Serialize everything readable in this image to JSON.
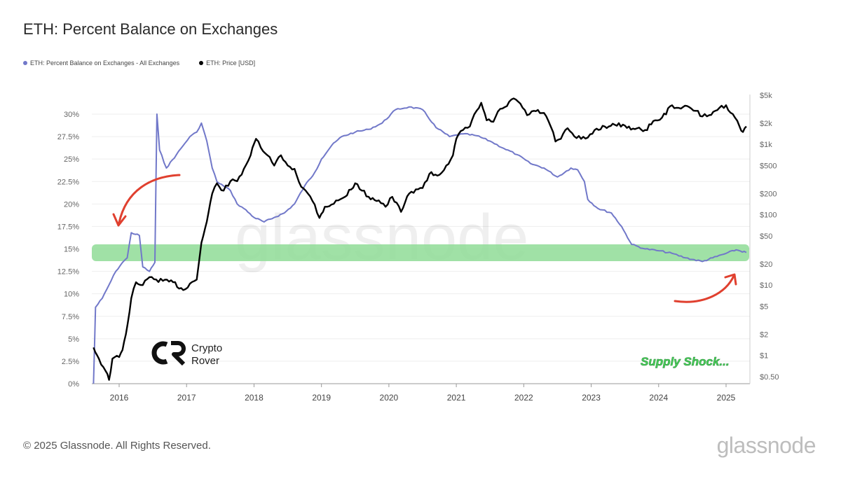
{
  "title": "ETH: Percent Balance on Exchanges",
  "legend": [
    {
      "label": "ETH: Percent Balance on Exchanges - All Exchanges",
      "color": "#7178c9"
    },
    {
      "label": "ETH: Price [USD]",
      "color": "#000000"
    }
  ],
  "watermark": "glassnode",
  "annotation": "Supply Shock...",
  "brand": {
    "line1": "Crypto",
    "line2": "Rover"
  },
  "footer": {
    "copyright": "© 2025 Glassnode. All Rights Reserved.",
    "logo": "glassnode"
  },
  "colors": {
    "balance": "#7178c9",
    "price": "#000000",
    "highlight": "#8fdc96",
    "arrow": "#e0402f"
  },
  "chart_data": {
    "type": "line",
    "x_ticks": [
      "2016",
      "2017",
      "2018",
      "2019",
      "2020",
      "2021",
      "2022",
      "2023",
      "2024",
      "2025"
    ],
    "y_left_ticks": [
      "0%",
      "2.5%",
      "5%",
      "7.5%",
      "10%",
      "12.5%",
      "15%",
      "17.5%",
      "20%",
      "22.5%",
      "25%",
      "27.5%",
      "30%"
    ],
    "y_left_range": [
      0,
      30
    ],
    "y_right_ticks": [
      "$0.50",
      "$1",
      "$2",
      "$5",
      "$10",
      "$20",
      "$50",
      "$100",
      "$200",
      "$500",
      "$1k",
      "$2k",
      "$5k"
    ],
    "y_right_scale": "log",
    "highlight_band_pct": [
      13.5,
      15.5
    ],
    "series": [
      {
        "name": "ETH: Percent Balance on Exchanges - All Exchanges",
        "axis": "left",
        "points": [
          [
            2015.62,
            0.0
          ],
          [
            2015.65,
            8.5
          ],
          [
            2015.75,
            9.5
          ],
          [
            2015.85,
            11.0
          ],
          [
            2015.95,
            12.5
          ],
          [
            2016.05,
            13.5
          ],
          [
            2016.12,
            14.0
          ],
          [
            2016.18,
            16.8
          ],
          [
            2016.3,
            16.5
          ],
          [
            2016.35,
            13.0
          ],
          [
            2016.45,
            12.5
          ],
          [
            2016.53,
            13.5
          ],
          [
            2016.56,
            30.0
          ],
          [
            2016.6,
            26.0
          ],
          [
            2016.7,
            24.0
          ],
          [
            2016.85,
            25.5
          ],
          [
            2016.95,
            26.5
          ],
          [
            2017.05,
            27.5
          ],
          [
            2017.15,
            28.0
          ],
          [
            2017.22,
            29.0
          ],
          [
            2017.3,
            27.0
          ],
          [
            2017.38,
            24.0
          ],
          [
            2017.45,
            22.5
          ],
          [
            2017.55,
            22.0
          ],
          [
            2017.65,
            21.5
          ],
          [
            2017.75,
            20.0
          ],
          [
            2017.85,
            19.5
          ],
          [
            2018.0,
            18.5
          ],
          [
            2018.15,
            18.0
          ],
          [
            2018.3,
            18.5
          ],
          [
            2018.45,
            19.0
          ],
          [
            2018.6,
            20.0
          ],
          [
            2018.75,
            22.0
          ],
          [
            2018.9,
            23.5
          ],
          [
            2019.0,
            25.0
          ],
          [
            2019.15,
            26.5
          ],
          [
            2019.3,
            27.5
          ],
          [
            2019.5,
            28.0
          ],
          [
            2019.7,
            28.3
          ],
          [
            2019.9,
            29.0
          ],
          [
            2020.1,
            30.5
          ],
          [
            2020.3,
            30.8
          ],
          [
            2020.5,
            30.5
          ],
          [
            2020.7,
            28.5
          ],
          [
            2020.9,
            27.5
          ],
          [
            2021.1,
            27.8
          ],
          [
            2021.3,
            27.6
          ],
          [
            2021.5,
            27.0
          ],
          [
            2021.7,
            26.2
          ],
          [
            2021.9,
            25.5
          ],
          [
            2022.1,
            24.5
          ],
          [
            2022.3,
            24.0
          ],
          [
            2022.5,
            23.0
          ],
          [
            2022.7,
            24.0
          ],
          [
            2022.8,
            23.8
          ],
          [
            2022.9,
            22.5
          ],
          [
            2022.95,
            20.5
          ],
          [
            2023.1,
            19.5
          ],
          [
            2023.3,
            19.0
          ],
          [
            2023.45,
            17.5
          ],
          [
            2023.6,
            15.5
          ],
          [
            2023.8,
            15.0
          ],
          [
            2024.0,
            14.8
          ],
          [
            2024.2,
            14.5
          ],
          [
            2024.4,
            14.0
          ],
          [
            2024.65,
            13.6
          ],
          [
            2024.8,
            14.0
          ],
          [
            2025.0,
            14.5
          ],
          [
            2025.15,
            14.9
          ],
          [
            2025.3,
            14.6
          ]
        ]
      },
      {
        "name": "ETH: Price [USD]",
        "axis": "right",
        "points": [
          [
            2015.62,
            1.3
          ],
          [
            2015.7,
            0.9
          ],
          [
            2015.8,
            0.6
          ],
          [
            2015.85,
            0.45
          ],
          [
            2015.9,
            0.9
          ],
          [
            2016.0,
            0.95
          ],
          [
            2016.05,
            1.2
          ],
          [
            2016.1,
            2.0
          ],
          [
            2016.18,
            6.5
          ],
          [
            2016.25,
            11.0
          ],
          [
            2016.35,
            10.0
          ],
          [
            2016.45,
            13.0
          ],
          [
            2016.55,
            12.0
          ],
          [
            2016.65,
            11.5
          ],
          [
            2016.8,
            11.0
          ],
          [
            2016.95,
            8.5
          ],
          [
            2017.05,
            10.5
          ],
          [
            2017.15,
            12.0
          ],
          [
            2017.22,
            40.0
          ],
          [
            2017.3,
            80.0
          ],
          [
            2017.38,
            200.0
          ],
          [
            2017.45,
            280.0
          ],
          [
            2017.55,
            220.0
          ],
          [
            2017.65,
            300.0
          ],
          [
            2017.75,
            300.0
          ],
          [
            2017.85,
            450.0
          ],
          [
            2017.95,
            700.0
          ],
          [
            2018.03,
            1200.0
          ],
          [
            2018.1,
            900.0
          ],
          [
            2018.2,
            700.0
          ],
          [
            2018.3,
            500.0
          ],
          [
            2018.4,
            700.0
          ],
          [
            2018.5,
            500.0
          ],
          [
            2018.6,
            450.0
          ],
          [
            2018.7,
            250.0
          ],
          [
            2018.8,
            200.0
          ],
          [
            2018.9,
            140.0
          ],
          [
            2018.97,
            90.0
          ],
          [
            2019.05,
            130.0
          ],
          [
            2019.15,
            140.0
          ],
          [
            2019.25,
            160.0
          ],
          [
            2019.35,
            180.0
          ],
          [
            2019.5,
            280.0
          ],
          [
            2019.6,
            220.0
          ],
          [
            2019.7,
            180.0
          ],
          [
            2019.85,
            160.0
          ],
          [
            2019.95,
            130.0
          ],
          [
            2020.05,
            180.0
          ],
          [
            2020.18,
            110.0
          ],
          [
            2020.3,
            200.0
          ],
          [
            2020.4,
            230.0
          ],
          [
            2020.5,
            240.0
          ],
          [
            2020.6,
            380.0
          ],
          [
            2020.75,
            370.0
          ],
          [
            2020.85,
            500.0
          ],
          [
            2020.95,
            700.0
          ],
          [
            2021.0,
            1200.0
          ],
          [
            2021.1,
            1600.0
          ],
          [
            2021.2,
            1800.0
          ],
          [
            2021.3,
            3000.0
          ],
          [
            2021.37,
            3900.0
          ],
          [
            2021.45,
            2200.0
          ],
          [
            2021.55,
            2100.0
          ],
          [
            2021.65,
            3200.0
          ],
          [
            2021.75,
            3500.0
          ],
          [
            2021.85,
            4500.0
          ],
          [
            2021.95,
            3800.0
          ],
          [
            2022.05,
            2600.0
          ],
          [
            2022.15,
            3000.0
          ],
          [
            2022.3,
            2800.0
          ],
          [
            2022.4,
            1800.0
          ],
          [
            2022.47,
            1100.0
          ],
          [
            2022.55,
            1200.0
          ],
          [
            2022.65,
            1700.0
          ],
          [
            2022.75,
            1300.0
          ],
          [
            2022.85,
            1200.0
          ],
          [
            2022.95,
            1250.0
          ],
          [
            2023.05,
            1600.0
          ],
          [
            2023.2,
            1800.0
          ],
          [
            2023.35,
            1900.0
          ],
          [
            2023.5,
            1850.0
          ],
          [
            2023.65,
            1650.0
          ],
          [
            2023.8,
            1600.0
          ],
          [
            2023.95,
            2200.0
          ],
          [
            2024.05,
            2400.0
          ],
          [
            2024.2,
            3600.0
          ],
          [
            2024.3,
            3300.0
          ],
          [
            2024.45,
            3400.0
          ],
          [
            2024.55,
            3000.0
          ],
          [
            2024.65,
            2500.0
          ],
          [
            2024.75,
            2600.0
          ],
          [
            2024.9,
            3300.0
          ],
          [
            2025.0,
            3600.0
          ],
          [
            2025.1,
            2700.0
          ],
          [
            2025.2,
            1800.0
          ],
          [
            2025.25,
            1500.0
          ],
          [
            2025.3,
            1800.0
          ]
        ]
      }
    ]
  }
}
